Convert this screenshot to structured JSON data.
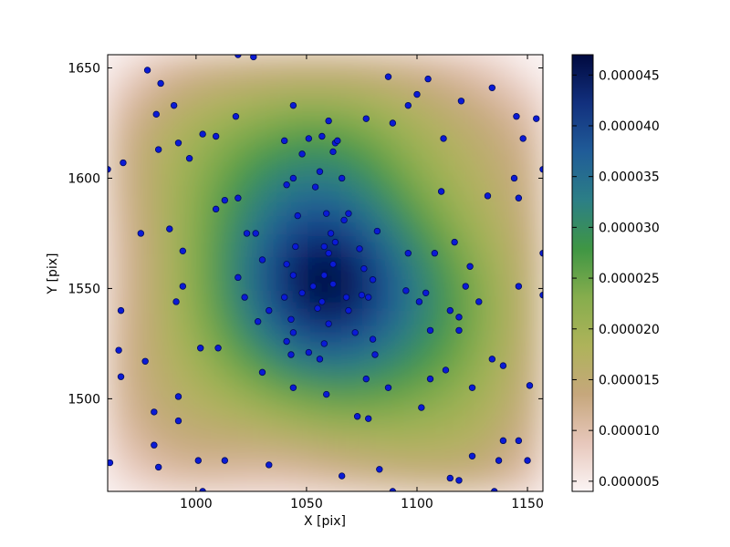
{
  "chart_data": {
    "type": "heatmap",
    "title": "",
    "xlabel": "X [pix]",
    "ylabel": "Y [pix]",
    "xlim": [
      960,
      1157
    ],
    "ylim": [
      1458,
      1656
    ],
    "x_ticks": [
      1000,
      1050,
      1100,
      1150
    ],
    "y_ticks": [
      1500,
      1550,
      1600,
      1650
    ],
    "density_peak": [
      1059,
      1552
    ],
    "colorbar": {
      "range": [
        4e-06,
        4.7e-05
      ],
      "ticks": [
        5e-06,
        1e-05,
        1.5e-05,
        2e-05,
        2.5e-05,
        3e-05,
        3.5e-05,
        4e-05,
        4.5e-05
      ],
      "tick_labels": [
        "0.000005",
        "0.000010",
        "0.000015",
        "0.000020",
        "0.000025",
        "0.000030",
        "0.000035",
        "0.000040",
        "0.000045"
      ],
      "colormap": [
        "#fbf5f5",
        "#e7c7bb",
        "#c6a77c",
        "#aeb35a",
        "#86ad4d",
        "#3f9644",
        "#2c7f86",
        "#205c98",
        "#12307e",
        "#00093f"
      ]
    },
    "points": [
      [
        978,
        1649
      ],
      [
        984,
        1643
      ],
      [
        982,
        1629
      ],
      [
        990,
        1633
      ],
      [
        983,
        1613
      ],
      [
        992,
        1616
      ],
      [
        997,
        1609
      ],
      [
        1003,
        1620
      ],
      [
        1009,
        1619
      ],
      [
        1019,
        1656
      ],
      [
        1026,
        1655
      ],
      [
        1018,
        1628
      ],
      [
        1044,
        1633
      ],
      [
        1048,
        1611
      ],
      [
        1060,
        1626
      ],
      [
        1062,
        1612
      ],
      [
        1063,
        1616
      ],
      [
        1077,
        1627
      ],
      [
        1087,
        1646
      ],
      [
        1089,
        1625
      ],
      [
        1096,
        1633
      ],
      [
        1100,
        1638
      ],
      [
        1105,
        1645
      ],
      [
        1120,
        1635
      ],
      [
        1112,
        1618
      ],
      [
        1134,
        1641
      ],
      [
        1145,
        1628
      ],
      [
        1148,
        1618
      ],
      [
        1154,
        1627
      ],
      [
        1157,
        1604
      ],
      [
        967,
        1607
      ],
      [
        975,
        1575
      ],
      [
        988,
        1577
      ],
      [
        994,
        1567
      ],
      [
        991,
        1544
      ],
      [
        994,
        1551
      ],
      [
        1009,
        1586
      ],
      [
        1013,
        1590
      ],
      [
        1019,
        1591
      ],
      [
        1019,
        1555
      ],
      [
        1023,
        1575
      ],
      [
        1027,
        1575
      ],
      [
        1030,
        1563
      ],
      [
        1022,
        1546
      ],
      [
        1033,
        1540
      ],
      [
        1028,
        1535
      ],
      [
        1040,
        1617
      ],
      [
        1041,
        1597
      ],
      [
        1044,
        1600
      ],
      [
        1051,
        1618
      ],
      [
        1054,
        1596
      ],
      [
        1056,
        1603
      ],
      [
        1057,
        1619
      ],
      [
        1064,
        1617
      ],
      [
        1066,
        1600
      ],
      [
        1046,
        1583
      ],
      [
        1045,
        1569
      ],
      [
        1041,
        1561
      ],
      [
        1044,
        1556
      ],
      [
        1040,
        1546
      ],
      [
        1043,
        1536
      ],
      [
        1044,
        1530
      ],
      [
        1041,
        1526
      ],
      [
        1043,
        1520
      ],
      [
        1048,
        1548
      ],
      [
        1053,
        1551
      ],
      [
        1058,
        1569
      ],
      [
        1059,
        1584
      ],
      [
        1061,
        1575
      ],
      [
        1063,
        1571
      ],
      [
        1067,
        1581
      ],
      [
        1069,
        1584
      ],
      [
        1058,
        1556
      ],
      [
        1062,
        1552
      ],
      [
        1060,
        1566
      ],
      [
        1062,
        1561
      ],
      [
        1057,
        1544
      ],
      [
        1055,
        1541
      ],
      [
        1060,
        1534
      ],
      [
        1068,
        1546
      ],
      [
        1069,
        1540
      ],
      [
        1074,
        1568
      ],
      [
        1076,
        1559
      ],
      [
        1075,
        1547
      ],
      [
        1078,
        1546
      ],
      [
        1080,
        1554
      ],
      [
        1082,
        1576
      ],
      [
        1080,
        1527
      ],
      [
        1081,
        1520
      ],
      [
        1072,
        1530
      ],
      [
        1077,
        1509
      ],
      [
        1058,
        1525
      ],
      [
        1051,
        1521
      ],
      [
        1056,
        1518
      ],
      [
        1059,
        1502
      ],
      [
        1044,
        1505
      ],
      [
        1030,
        1512
      ],
      [
        1002,
        1523
      ],
      [
        1010,
        1523
      ],
      [
        992,
        1501
      ],
      [
        992,
        1490
      ],
      [
        981,
        1494
      ],
      [
        981,
        1479
      ],
      [
        983,
        1469
      ],
      [
        1003,
        1458
      ],
      [
        1001,
        1472
      ],
      [
        1013,
        1472
      ],
      [
        1033,
        1470
      ],
      [
        1066,
        1465
      ],
      [
        1073,
        1492
      ],
      [
        1078,
        1491
      ],
      [
        1083,
        1468
      ],
      [
        1087,
        1505
      ],
      [
        1089,
        1458
      ],
      [
        1096,
        1566
      ],
      [
        1095,
        1549
      ],
      [
        1101,
        1544
      ],
      [
        1104,
        1548
      ],
      [
        1106,
        1531
      ],
      [
        1108,
        1566
      ],
      [
        1111,
        1594
      ],
      [
        1117,
        1571
      ],
      [
        1115,
        1540
      ],
      [
        1119,
        1537
      ],
      [
        1119,
        1531
      ],
      [
        1122,
        1551
      ],
      [
        1124,
        1560
      ],
      [
        1128,
        1544
      ],
      [
        1113,
        1513
      ],
      [
        1106,
        1509
      ],
      [
        1102,
        1496
      ],
      [
        1125,
        1505
      ],
      [
        1115,
        1464
      ],
      [
        1119,
        1463
      ],
      [
        1125,
        1474
      ],
      [
        1132,
        1592
      ],
      [
        1144,
        1600
      ],
      [
        1146,
        1591
      ],
      [
        1146,
        1551
      ],
      [
        1134,
        1518
      ],
      [
        1139,
        1515
      ],
      [
        1137,
        1472
      ],
      [
        1139,
        1481
      ],
      [
        1146,
        1481
      ],
      [
        1150,
        1472
      ],
      [
        1151,
        1506
      ],
      [
        1157,
        1566
      ],
      [
        1157,
        1547
      ],
      [
        960,
        1604
      ],
      [
        966,
        1540
      ],
      [
        965,
        1522
      ],
      [
        966,
        1510
      ],
      [
        961,
        1471
      ],
      [
        977,
        1517
      ],
      [
        1135,
        1458
      ]
    ]
  }
}
